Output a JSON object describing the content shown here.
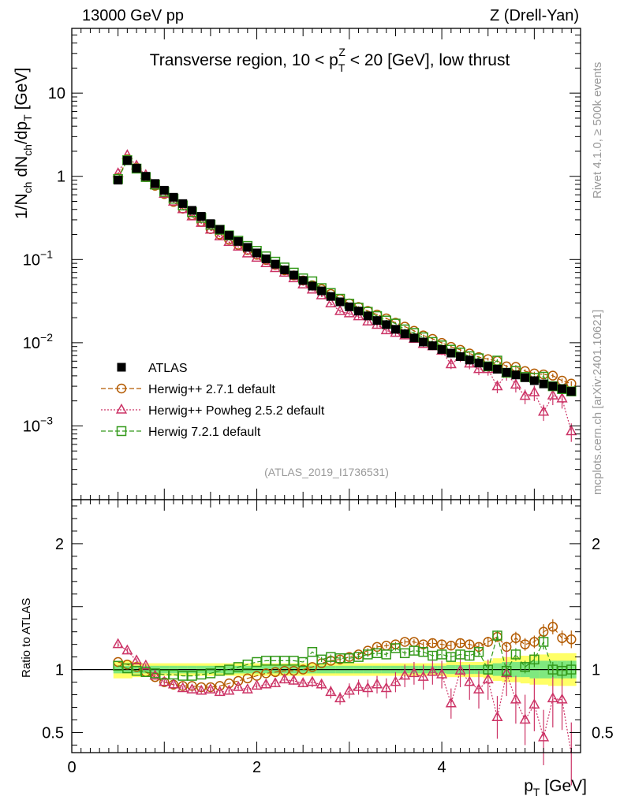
{
  "header": {
    "energy_label": "13000 GeV pp",
    "process_label": "Z (Drell-Yan)"
  },
  "side": {
    "rivet_label": "Rivet 4.1.0, ≥ 500k events",
    "mcplots_label": "mcplots.cern.ch [arXiv:2401.10621]"
  },
  "chart_data": {
    "type": "scatter",
    "title": "Transverse region, 10 < pT^Z < 20 [GeV], low thrust",
    "title_parts": {
      "pre": "Transverse region, 10 < p",
      "sup": "Z",
      "sub": "T",
      "post": " < 20 [GeV], low thrust"
    },
    "analysis_id": "(ATLAS_2019_I1736531)",
    "xlabel": "pT [GeV]",
    "xlabel_parts": {
      "main": "p",
      "sub": "T",
      "unit": " [GeV]"
    },
    "ylabel": "1/Nch dNch/dpT [GeV]",
    "ylabel_parts": {
      "a": "1/N",
      "a_sub": "ch",
      "b": " dN",
      "b_sub": "ch",
      "c": "/dp",
      "c_sub": "T",
      "d": " [GeV]"
    },
    "ratio_ylabel": "Ratio to ATLAS",
    "xlim": [
      0,
      5.5
    ],
    "ylim_log": [
      0.00013,
      60
    ],
    "ratio_ylim": [
      0.34,
      2.35
    ],
    "x_ticks": [
      "0",
      "2",
      "4"
    ],
    "y_ticks": [
      {
        "value": 10,
        "base": "10",
        "exp": ""
      },
      {
        "value": 1,
        "base": "1",
        "exp": ""
      },
      {
        "value": 0.1,
        "base": "10",
        "exp": "−1"
      },
      {
        "value": 0.01,
        "base": "10",
        "exp": "−2"
      },
      {
        "value": 0.001,
        "base": "10",
        "exp": "−3"
      }
    ],
    "ratio_ticks": [
      {
        "value": 2,
        "label": "2"
      },
      {
        "value": 1,
        "label": "1"
      },
      {
        "value": 0.5,
        "label": "0.5"
      }
    ],
    "x": [
      0.5,
      0.6,
      0.7,
      0.8,
      0.9,
      1.0,
      1.1,
      1.2,
      1.3,
      1.4,
      1.5,
      1.6,
      1.7,
      1.8,
      1.9,
      2.0,
      2.1,
      2.2,
      2.3,
      2.4,
      2.5,
      2.6,
      2.7,
      2.8,
      2.9,
      3.0,
      3.1,
      3.2,
      3.3,
      3.4,
      3.5,
      3.6,
      3.7,
      3.8,
      3.9,
      4.0,
      4.1,
      4.2,
      4.3,
      4.4,
      4.5,
      4.6,
      4.7,
      4.8,
      4.9,
      5.0,
      5.1,
      5.2,
      5.3,
      5.4
    ],
    "band_outer": [
      0.07,
      0.07,
      0.06,
      0.05,
      0.05,
      0.05,
      0.05,
      0.05,
      0.05,
      0.05,
      0.05,
      0.05,
      0.05,
      0.05,
      0.05,
      0.05,
      0.05,
      0.05,
      0.05,
      0.05,
      0.05,
      0.05,
      0.05,
      0.05,
      0.05,
      0.05,
      0.05,
      0.05,
      0.05,
      0.05,
      0.05,
      0.05,
      0.05,
      0.05,
      0.05,
      0.05,
      0.06,
      0.06,
      0.06,
      0.06,
      0.07,
      0.09,
      0.1,
      0.1,
      0.11,
      0.12,
      0.12,
      0.13,
      0.13,
      0.13
    ],
    "band_inner": [
      0.03,
      0.03,
      0.03,
      0.03,
      0.03,
      0.03,
      0.03,
      0.03,
      0.03,
      0.03,
      0.03,
      0.03,
      0.03,
      0.03,
      0.03,
      0.03,
      0.03,
      0.03,
      0.03,
      0.03,
      0.03,
      0.03,
      0.03,
      0.03,
      0.03,
      0.03,
      0.03,
      0.03,
      0.03,
      0.03,
      0.03,
      0.03,
      0.03,
      0.03,
      0.03,
      0.03,
      0.035,
      0.035,
      0.035,
      0.035,
      0.04,
      0.05,
      0.06,
      0.06,
      0.06,
      0.07,
      0.07,
      0.07,
      0.07,
      0.07
    ],
    "series": [
      {
        "name": "ATLAS",
        "marker": "square-filled",
        "color": "#000000",
        "values": [
          0.9,
          1.55,
          1.25,
          1.0,
          0.82,
          0.68,
          0.56,
          0.47,
          0.39,
          0.33,
          0.27,
          0.23,
          0.195,
          0.165,
          0.14,
          0.12,
          0.102,
          0.088,
          0.075,
          0.065,
          0.056,
          0.048,
          0.042,
          0.036,
          0.031,
          0.027,
          0.024,
          0.021,
          0.0185,
          0.0165,
          0.0145,
          0.0128,
          0.0114,
          0.0102,
          0.0092,
          0.0083,
          0.0075,
          0.0068,
          0.0062,
          0.0057,
          0.0052,
          0.0048,
          0.0044,
          0.0041,
          0.0038,
          0.0035,
          0.0032,
          0.003,
          0.0028,
          0.0026
        ]
      },
      {
        "name": "Herwig++ 2.7.1 default",
        "marker": "circle",
        "color": "#b35a00",
        "ratio": [
          1.06,
          1.04,
          1.02,
          0.98,
          0.94,
          0.9,
          0.88,
          0.87,
          0.87,
          0.86,
          0.86,
          0.87,
          0.89,
          0.91,
          0.93,
          0.95,
          0.97,
          0.98,
          0.99,
          0.99,
          1.0,
          1.02,
          1.05,
          1.07,
          1.08,
          1.1,
          1.12,
          1.15,
          1.18,
          1.19,
          1.2,
          1.22,
          1.22,
          1.2,
          1.21,
          1.2,
          1.19,
          1.21,
          1.2,
          1.18,
          1.22,
          1.26,
          1.18,
          1.25,
          1.2,
          1.22,
          1.3,
          1.34,
          1.25,
          1.24
        ],
        "ratio_err": [
          0.01,
          0.01,
          0.01,
          0.01,
          0.01,
          0.01,
          0.01,
          0.01,
          0.01,
          0.01,
          0.01,
          0.01,
          0.01,
          0.01,
          0.01,
          0.01,
          0.01,
          0.01,
          0.01,
          0.01,
          0.01,
          0.01,
          0.01,
          0.02,
          0.02,
          0.02,
          0.02,
          0.02,
          0.02,
          0.02,
          0.02,
          0.02,
          0.02,
          0.02,
          0.03,
          0.03,
          0.03,
          0.03,
          0.03,
          0.03,
          0.04,
          0.04,
          0.04,
          0.05,
          0.05,
          0.05,
          0.06,
          0.06,
          0.06,
          0.07
        ]
      },
      {
        "name": "Herwig++ Powheg 2.5.2 default",
        "marker": "triangle",
        "color": "#cc3366",
        "ratio": [
          1.2,
          1.15,
          1.07,
          1.03,
          0.95,
          0.9,
          0.88,
          0.85,
          0.84,
          0.83,
          0.84,
          0.82,
          0.83,
          0.86,
          0.84,
          0.87,
          0.88,
          0.89,
          0.92,
          0.91,
          0.89,
          0.9,
          0.88,
          0.82,
          0.77,
          0.83,
          0.86,
          0.85,
          0.88,
          0.85,
          0.9,
          0.95,
          0.97,
          0.94,
          0.98,
          0.96,
          0.73,
          0.99,
          0.9,
          0.84,
          0.92,
          0.62,
          0.97,
          0.76,
          0.6,
          0.72,
          0.46,
          0.77,
          0.76,
          0.33
        ],
        "ratio_err": [
          0.02,
          0.02,
          0.02,
          0.02,
          0.02,
          0.02,
          0.02,
          0.02,
          0.02,
          0.02,
          0.02,
          0.02,
          0.02,
          0.02,
          0.02,
          0.02,
          0.03,
          0.03,
          0.03,
          0.03,
          0.03,
          0.04,
          0.04,
          0.05,
          0.05,
          0.06,
          0.06,
          0.07,
          0.07,
          0.08,
          0.08,
          0.09,
          0.09,
          0.1,
          0.1,
          0.11,
          0.12,
          0.13,
          0.14,
          0.15,
          0.16,
          0.17,
          0.18,
          0.19,
          0.2,
          0.21,
          0.22,
          0.23,
          0.24,
          0.25
        ]
      },
      {
        "name": "Herwig 7.2.1 default",
        "marker": "square-open",
        "color": "#33991a",
        "ratio": [
          1.03,
          1.01,
          0.99,
          0.98,
          0.97,
          0.96,
          0.96,
          0.95,
          0.95,
          0.96,
          0.97,
          0.99,
          1.0,
          1.02,
          1.04,
          1.06,
          1.07,
          1.07,
          1.07,
          1.07,
          1.06,
          1.14,
          1.08,
          1.1,
          1.09,
          1.09,
          1.1,
          1.12,
          1.13,
          1.12,
          1.17,
          1.13,
          1.15,
          1.14,
          1.11,
          1.12,
          1.1,
          1.12,
          1.11,
          1.14,
          1.0,
          1.27,
          0.99,
          1.12,
          1.02,
          1.08,
          1.22,
          1.0,
          0.99,
          1.0
        ],
        "ratio_err": [
          0.01,
          0.01,
          0.01,
          0.01,
          0.01,
          0.01,
          0.01,
          0.01,
          0.01,
          0.01,
          0.01,
          0.01,
          0.01,
          0.01,
          0.01,
          0.01,
          0.01,
          0.01,
          0.01,
          0.01,
          0.01,
          0.01,
          0.02,
          0.02,
          0.02,
          0.02,
          0.02,
          0.02,
          0.02,
          0.02,
          0.02,
          0.02,
          0.03,
          0.03,
          0.03,
          0.03,
          0.03,
          0.03,
          0.04,
          0.04,
          0.04,
          0.04,
          0.05,
          0.05,
          0.05,
          0.06,
          0.06,
          0.06,
          0.07,
          0.07
        ]
      }
    ],
    "colors": {
      "band_outer": "#ffff66",
      "band_inner": "#7fe87f",
      "frame": "#000000",
      "annotation": "#999999"
    }
  }
}
